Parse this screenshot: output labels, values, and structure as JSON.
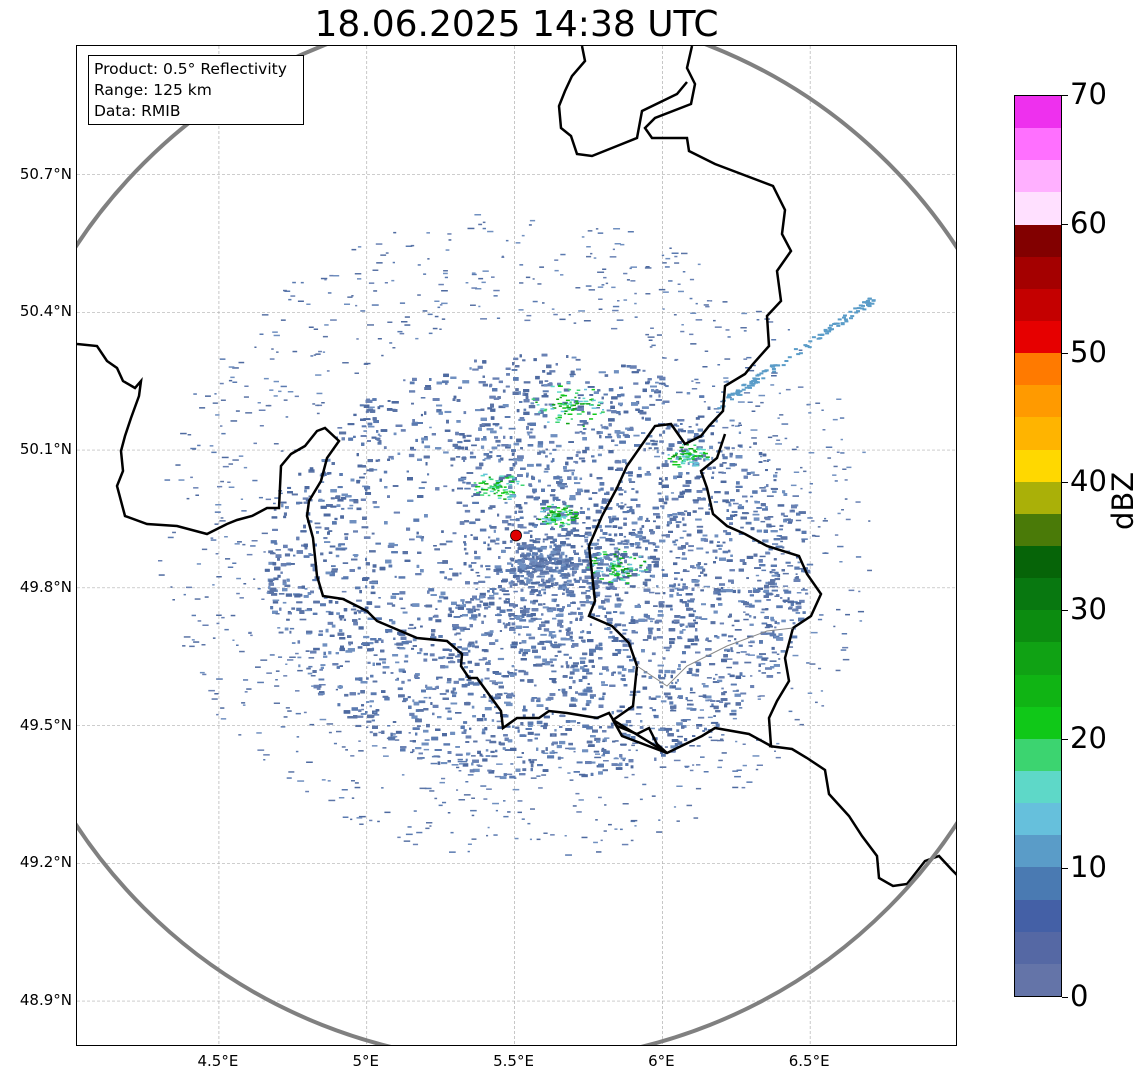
{
  "title": "18.06.2025 14:38 UTC",
  "info_box": {
    "product": "Product: 0.5° Reflectivity",
    "range": "Range: 125 km",
    "source": "Data: RMIB"
  },
  "map": {
    "lon_range": [
      4.02,
      7.0
    ],
    "lat_range": [
      48.8,
      50.98
    ],
    "radar_site": {
      "lon": 5.505,
      "lat": 49.914
    },
    "range_km": 125,
    "lat_ticks": [
      {
        "value": 48.9,
        "label": "48.9°N"
      },
      {
        "value": 49.2,
        "label": "49.2°N"
      },
      {
        "value": 49.5,
        "label": "49.5°N"
      },
      {
        "value": 49.8,
        "label": "49.8°N"
      },
      {
        "value": 50.1,
        "label": "50.1°N"
      },
      {
        "value": 50.4,
        "label": "50.4°N"
      },
      {
        "value": 50.7,
        "label": "50.7°N"
      }
    ],
    "lon_ticks": [
      {
        "value": 4.5,
        "label": "4.5°E"
      },
      {
        "value": 5.0,
        "label": "5°E"
      },
      {
        "value": 5.5,
        "label": "5.5°E"
      },
      {
        "value": 6.0,
        "label": "6°E"
      },
      {
        "value": 6.5,
        "label": "6.5°E"
      }
    ],
    "grid": true,
    "range_ring_color": "#808080",
    "border_color": "#000000",
    "radar_marker_color": "#e00000",
    "echo_base_color": "#5b74a6"
  },
  "colorbar": {
    "label": "dBZ",
    "min": 0,
    "max": 70,
    "ticks": [
      "0",
      "10",
      "20",
      "30",
      "40",
      "50",
      "60",
      "70"
    ],
    "colors": [
      "#6474a8",
      "#5568a4",
      "#4460a6",
      "#4a7ab2",
      "#5a9cc8",
      "#66c0dc",
      "#5ed8c8",
      "#3cd470",
      "#10c818",
      "#10b414",
      "#10a214",
      "#0c8c10",
      "#087810",
      "#066408",
      "#4a7a08",
      "#aab008",
      "#ffd800",
      "#ffb400",
      "#ff9a00",
      "#ff7a00",
      "#e60000",
      "#c40000",
      "#a40000",
      "#820000",
      "#ffe0ff",
      "#ffb0ff",
      "#ff70ff",
      "#ee30ee"
    ]
  }
}
